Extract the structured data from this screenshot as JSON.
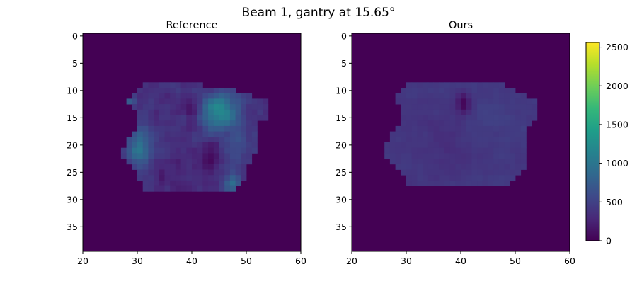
{
  "chart_data": [
    {
      "type": "heatmap",
      "title": "Reference",
      "xlim": [
        20,
        60
      ],
      "ylim": [
        0,
        40
      ],
      "xticks": [
        20,
        30,
        40,
        50,
        60
      ],
      "yticks": [
        0,
        5,
        10,
        15,
        20,
        25,
        30,
        35
      ],
      "y_inverted": true,
      "colormap": "viridis",
      "background_value": 0,
      "grid": false,
      "field": {
        "shape_rows": [
          {
            "y": 9,
            "x0": 31,
            "x1": 41
          },
          {
            "y": 10,
            "x0": 30,
            "x1": 47
          },
          {
            "y": 11,
            "x0": 29,
            "x1": 50
          },
          {
            "y": 12,
            "x0": 28,
            "x1": 53
          },
          {
            "y": 13,
            "x0": 29,
            "x1": 53
          },
          {
            "y": 14,
            "x0": 30,
            "x1": 53
          },
          {
            "y": 15,
            "x0": 30,
            "x1": 53
          },
          {
            "y": 16,
            "x0": 30,
            "x1": 51
          },
          {
            "y": 17,
            "x0": 30,
            "x1": 51
          },
          {
            "y": 18,
            "x0": 29,
            "x1": 51
          },
          {
            "y": 19,
            "x0": 28,
            "x1": 51
          },
          {
            "y": 20,
            "x0": 28,
            "x1": 51
          },
          {
            "y": 21,
            "x0": 27,
            "x1": 51
          },
          {
            "y": 22,
            "x0": 27,
            "x1": 50
          },
          {
            "y": 23,
            "x0": 28,
            "x1": 50
          },
          {
            "y": 24,
            "x0": 29,
            "x1": 49
          },
          {
            "y": 25,
            "x0": 30,
            "x1": 49
          },
          {
            "y": 26,
            "x0": 30,
            "x1": 49
          },
          {
            "y": 27,
            "x0": 31,
            "x1": 48
          },
          {
            "y": 28,
            "x0": 31,
            "x1": 47
          }
        ],
        "base_value": 350,
        "noise": 180,
        "hotspots": [
          {
            "x": 44.5,
            "y": 14,
            "value": 900,
            "sx": 2.4,
            "sy": 2.2
          },
          {
            "x": 30,
            "y": 20.5,
            "value": 650,
            "sx": 1.6,
            "sy": 2.5
          },
          {
            "x": 47,
            "y": 27,
            "value": 500,
            "sx": 1.2,
            "sy": 1.3
          },
          {
            "x": 48,
            "y": 19,
            "value": 250,
            "sx": 2.0,
            "sy": 3.5
          },
          {
            "x": 28.5,
            "y": 12,
            "value": 400,
            "sx": 0.8,
            "sy": 0.8
          }
        ],
        "cold_spots": [
          {
            "x": 39.5,
            "y": 13.5,
            "value": 280,
            "sx": 0.9,
            "sy": 1.6
          },
          {
            "x": 35,
            "y": 25,
            "value": 150,
            "sx": 2.5,
            "sy": 2.0
          },
          {
            "x": 43,
            "y": 22,
            "value": 200,
            "sx": 1.2,
            "sy": 2.0
          }
        ]
      }
    },
    {
      "type": "heatmap",
      "title": "Ours",
      "xlim": [
        20,
        60
      ],
      "ylim": [
        0,
        40
      ],
      "xticks": [
        20,
        30,
        40,
        50,
        60
      ],
      "yticks": [
        0,
        5,
        10,
        15,
        20,
        25,
        30,
        35
      ],
      "y_inverted": true,
      "colormap": "viridis",
      "background_value": 0,
      "grid": false,
      "field": {
        "shape_rows": [
          {
            "y": 9,
            "x0": 30,
            "x1": 47
          },
          {
            "y": 10,
            "x0": 29,
            "x1": 49
          },
          {
            "y": 11,
            "x0": 28,
            "x1": 51
          },
          {
            "y": 12,
            "x0": 28,
            "x1": 53
          },
          {
            "y": 13,
            "x0": 29,
            "x1": 53
          },
          {
            "y": 14,
            "x0": 29,
            "x1": 53
          },
          {
            "y": 15,
            "x0": 29,
            "x1": 53
          },
          {
            "y": 16,
            "x0": 29,
            "x1": 52
          },
          {
            "y": 17,
            "x0": 28,
            "x1": 51
          },
          {
            "y": 18,
            "x0": 27,
            "x1": 51
          },
          {
            "y": 19,
            "x0": 27,
            "x1": 51
          },
          {
            "y": 20,
            "x0": 26,
            "x1": 51
          },
          {
            "y": 21,
            "x0": 26,
            "x1": 51
          },
          {
            "y": 22,
            "x0": 26,
            "x1": 51
          },
          {
            "y": 23,
            "x0": 27,
            "x1": 51
          },
          {
            "y": 24,
            "x0": 28,
            "x1": 51
          },
          {
            "y": 25,
            "x0": 29,
            "x1": 50
          },
          {
            "y": 26,
            "x0": 30,
            "x1": 49
          },
          {
            "y": 27,
            "x0": 30,
            "x1": 48
          }
        ],
        "base_value": 420,
        "noise": 70,
        "hotspots": [
          {
            "x": 45,
            "y": 15,
            "value": 80,
            "sx": 3,
            "sy": 3
          }
        ],
        "cold_spots": [
          {
            "x": 40,
            "y": 12.5,
            "value": 400,
            "sx": 0.9,
            "sy": 1.4
          },
          {
            "x": 37,
            "y": 20,
            "value": 80,
            "sx": 3,
            "sy": 4
          }
        ]
      }
    }
  ],
  "figure": {
    "suptitle": "Beam  1, gantry at  15.65°",
    "colorbar": {
      "min": 0,
      "max": 2560,
      "ticks": [
        0,
        500,
        1000,
        1500,
        2000,
        2500
      ],
      "colormap": "viridis"
    }
  }
}
